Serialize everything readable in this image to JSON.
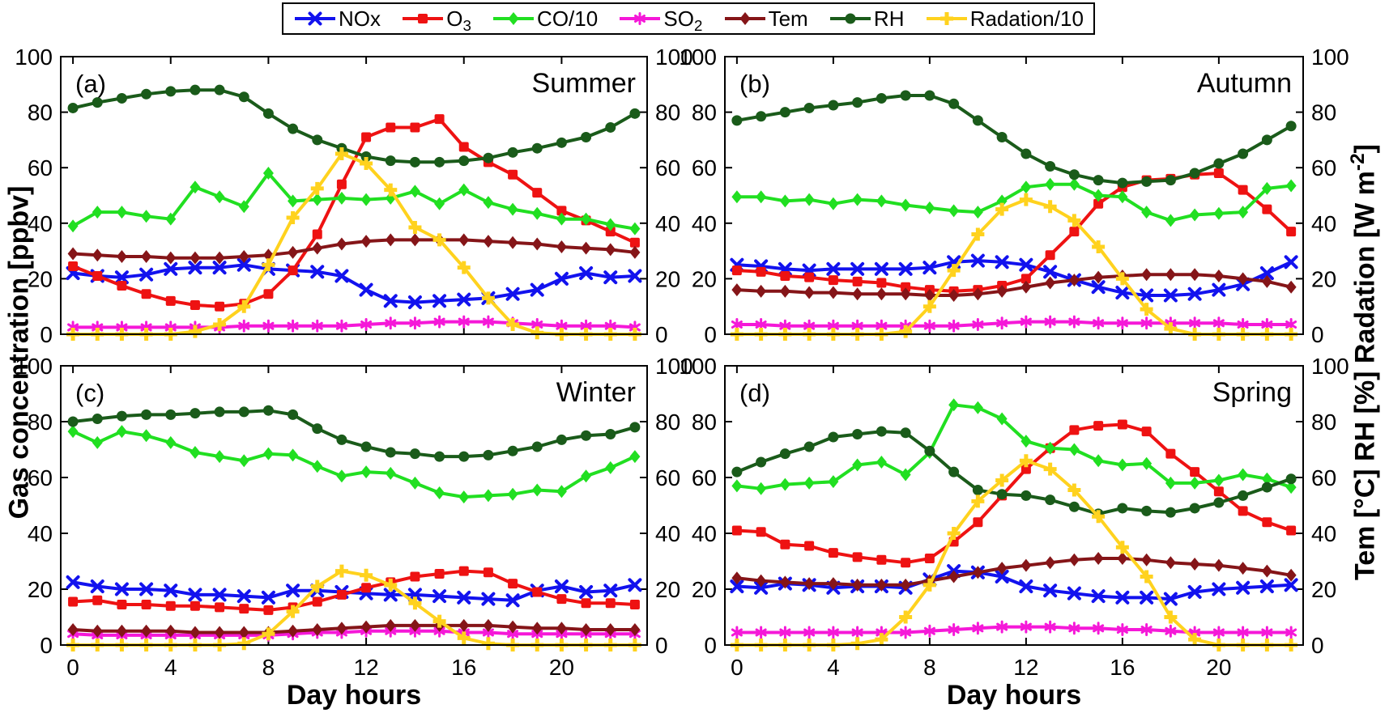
{
  "page": {
    "background": "#ffffff"
  },
  "legend": {
    "position": "top",
    "items": [
      {
        "id": "nox",
        "base": "NOx",
        "sub": ""
      },
      {
        "id": "o3",
        "base": "O",
        "sub": "3"
      },
      {
        "id": "co",
        "base": "CO/10",
        "sub": ""
      },
      {
        "id": "so2",
        "base": "SO",
        "sub": "2"
      },
      {
        "id": "tem",
        "base": "Tem",
        "sub": ""
      },
      {
        "id": "rh",
        "base": "RH",
        "sub": ""
      },
      {
        "id": "rad",
        "base": "Radation/10",
        "sub": ""
      }
    ]
  },
  "axes": {
    "x_label": "Day hours",
    "y_left_label": "Gas concentration [ppbv]",
    "y_right_pre": "Tem [°C] RH [%] Radation [W m",
    "y_right_sup": "-2",
    "y_right_post": "]",
    "x_ticks": [
      0,
      4,
      8,
      12,
      16,
      20
    ],
    "y_ticks": [
      0,
      20,
      40,
      60,
      80,
      100
    ],
    "x_range": [
      -0.5,
      23.5
    ],
    "y_range": [
      0,
      100
    ],
    "grid": false
  },
  "series_meta": [
    {
      "id": "nox",
      "name": "NOx",
      "color": "#1212ee",
      "marker": "x"
    },
    {
      "id": "o3",
      "name": "O3",
      "color": "#ee1212",
      "marker": "square"
    },
    {
      "id": "co",
      "name": "CO/10",
      "color": "#21df21",
      "marker": "diamond"
    },
    {
      "id": "so2",
      "name": "SO2",
      "color": "#f518d8",
      "marker": "star"
    },
    {
      "id": "tem",
      "name": "Tem",
      "color": "#851518",
      "marker": "diamond"
    },
    {
      "id": "rh",
      "name": "RH",
      "color": "#1a5b1a",
      "marker": "circle"
    },
    {
      "id": "rad",
      "name": "Radation/10",
      "color": "#ffd21e",
      "marker": "plus"
    }
  ],
  "chart_data": [
    {
      "type": "line",
      "panel": "a",
      "letter": "(a)",
      "title": "Summer",
      "x": [
        0,
        1,
        2,
        3,
        4,
        5,
        6,
        7,
        8,
        9,
        10,
        11,
        12,
        13,
        14,
        15,
        16,
        17,
        18,
        19,
        20,
        21,
        22,
        23
      ],
      "series": [
        {
          "name": "NOx",
          "values": [
            22,
            21,
            20.5,
            21.5,
            23.5,
            24,
            24,
            25,
            23.5,
            23,
            22.5,
            21,
            16,
            12,
            11.5,
            12,
            12.5,
            13,
            14.5,
            16,
            20,
            22,
            20.5,
            21
          ]
        },
        {
          "name": "O3",
          "values": [
            24.5,
            21,
            17.5,
            14.5,
            12,
            10.5,
            10,
            11,
            14.5,
            23,
            36,
            54,
            71,
            74.5,
            74.5,
            77.5,
            67.5,
            62,
            57.5,
            51,
            44.5,
            41,
            37,
            33
          ]
        },
        {
          "name": "CO/10",
          "values": [
            39,
            44,
            44,
            42.5,
            41.5,
            53,
            49.5,
            46,
            58,
            48,
            48.5,
            49,
            48.5,
            49,
            51.5,
            47,
            52,
            47.5,
            45,
            43.5,
            41.5,
            41.5,
            39.5,
            38
          ]
        },
        {
          "name": "SO2",
          "values": [
            2.5,
            2.5,
            2.5,
            2.5,
            2.5,
            2.5,
            2.5,
            3,
            3,
            3,
            3,
            3,
            3.5,
            4,
            4,
            4.5,
            4.5,
            4.5,
            4,
            3.5,
            3,
            3,
            3,
            2.5
          ]
        },
        {
          "name": "Tem",
          "values": [
            29,
            28.5,
            28,
            28,
            27.5,
            27.5,
            27.5,
            28,
            28.5,
            29.5,
            31,
            32.5,
            33.5,
            34,
            34,
            34,
            34,
            33.5,
            33,
            32.5,
            31.5,
            31,
            30.5,
            29.5
          ]
        },
        {
          "name": "RH",
          "values": [
            81.5,
            83.5,
            85,
            86.5,
            87.5,
            88,
            88,
            85.5,
            79.5,
            74,
            70,
            67,
            64,
            62.5,
            62,
            62,
            62.5,
            63.5,
            65.5,
            67,
            69,
            71,
            74.5,
            79.5
          ]
        },
        {
          "name": "Radation/10",
          "values": [
            0,
            0,
            0,
            0,
            0,
            1,
            3.5,
            10,
            25,
            42,
            52.5,
            65,
            61.5,
            52,
            38.5,
            34,
            24,
            13,
            3.5,
            0.5,
            0,
            0,
            0,
            0
          ]
        }
      ]
    },
    {
      "type": "line",
      "panel": "b",
      "letter": "(b)",
      "title": "Autumn",
      "x": [
        0,
        1,
        2,
        3,
        4,
        5,
        6,
        7,
        8,
        9,
        10,
        11,
        12,
        13,
        14,
        15,
        16,
        17,
        18,
        19,
        20,
        21,
        22,
        23
      ],
      "series": [
        {
          "name": "NOx",
          "values": [
            25,
            24.5,
            23.5,
            23,
            23.5,
            23.5,
            23.5,
            23.5,
            24,
            26,
            26.5,
            26,
            25,
            22.5,
            19.5,
            17,
            15,
            14,
            14,
            14.5,
            16,
            18,
            22,
            26
          ]
        },
        {
          "name": "O3",
          "values": [
            23,
            22.5,
            21,
            20.5,
            19.5,
            19,
            18.5,
            17,
            16,
            15.5,
            16,
            17.5,
            20,
            28.5,
            37,
            47,
            53,
            55.5,
            56,
            57.5,
            58,
            52,
            45,
            37
          ]
        },
        {
          "name": "CO/10",
          "values": [
            49.5,
            49.5,
            48,
            48.5,
            47,
            48.5,
            48,
            46.5,
            45.5,
            44.5,
            44,
            48,
            53,
            54,
            54,
            50,
            49.5,
            44,
            41,
            43,
            43.5,
            44,
            52.5,
            53.5
          ]
        },
        {
          "name": "SO2",
          "values": [
            3.5,
            3.5,
            3,
            3,
            3,
            3,
            3,
            3,
            3,
            3,
            3.5,
            4,
            4.5,
            4.5,
            4.5,
            4,
            4,
            4,
            4,
            4,
            4,
            3.5,
            3.5,
            3.5
          ]
        },
        {
          "name": "Tem",
          "values": [
            16,
            15.5,
            15.5,
            15,
            15,
            14.5,
            14.5,
            14.5,
            14,
            14,
            14.5,
            15.5,
            17,
            18.5,
            19.5,
            20.5,
            21,
            21.5,
            21.5,
            21.5,
            21,
            20,
            19,
            17
          ]
        },
        {
          "name": "RH",
          "values": [
            77,
            78.5,
            80,
            81.5,
            82.5,
            83.5,
            85,
            86,
            86,
            83,
            77,
            71,
            65,
            60.5,
            57.5,
            55.5,
            54.5,
            55,
            55.5,
            58,
            61.5,
            65,
            70,
            75
          ]
        },
        {
          "name": "Radation/10",
          "values": [
            0,
            0,
            0,
            0,
            0,
            0,
            0,
            1,
            10,
            23,
            36,
            45,
            48.5,
            46,
            41,
            31.5,
            20,
            9,
            2,
            0,
            0,
            0,
            0,
            0
          ]
        }
      ]
    },
    {
      "type": "line",
      "panel": "c",
      "letter": "(c)",
      "title": "Winter",
      "x": [
        0,
        1,
        2,
        3,
        4,
        5,
        6,
        7,
        8,
        9,
        10,
        11,
        12,
        13,
        14,
        15,
        16,
        17,
        18,
        19,
        20,
        21,
        22,
        23
      ],
      "series": [
        {
          "name": "NOx",
          "values": [
            22.5,
            21,
            20,
            20,
            19.5,
            18,
            18,
            17.5,
            17,
            19.5,
            19.5,
            19,
            18.5,
            18,
            18,
            17.5,
            17,
            16.5,
            16,
            19.5,
            21,
            19,
            19.5,
            21.5
          ]
        },
        {
          "name": "O3",
          "values": [
            15.5,
            16,
            14.5,
            14.5,
            14,
            14,
            13.5,
            13,
            12.5,
            13.5,
            15.5,
            18,
            20.5,
            22.5,
            24.5,
            25.5,
            26.5,
            26,
            22,
            19,
            16.5,
            15,
            15,
            14.5
          ]
        },
        {
          "name": "CO/10",
          "values": [
            76.5,
            72.5,
            76.5,
            75,
            72.5,
            69,
            67.5,
            66,
            68.5,
            68,
            64,
            60.5,
            62,
            61.5,
            58,
            54.5,
            53,
            53.5,
            54,
            55.5,
            55,
            60.5,
            63.5,
            67.5
          ]
        },
        {
          "name": "SO2",
          "values": [
            4,
            3.5,
            3.5,
            3.5,
            3.5,
            3.5,
            3.5,
            3.5,
            3.5,
            4,
            4.5,
            4.5,
            5,
            5,
            5,
            5,
            4.5,
            4.5,
            4,
            4,
            4,
            4,
            4,
            4
          ]
        },
        {
          "name": "Tem",
          "values": [
            5.5,
            5,
            5,
            5,
            5,
            4.5,
            4.5,
            4.5,
            4.5,
            5,
            5.5,
            6,
            6.5,
            7,
            7,
            7,
            7,
            7,
            6.5,
            6,
            6,
            5.5,
            5.5,
            5.5
          ]
        },
        {
          "name": "RH",
          "values": [
            80,
            81,
            82,
            82.5,
            82.5,
            83,
            83.5,
            83.5,
            84,
            82.5,
            77.5,
            73.5,
            71,
            69,
            68.5,
            67.5,
            67.5,
            68,
            69.5,
            71,
            73.5,
            75,
            75.5,
            78
          ]
        },
        {
          "name": "Radation/10",
          "values": [
            0,
            0,
            0,
            0,
            0,
            0,
            0,
            0.5,
            4,
            12,
            21,
            26.5,
            25,
            21.5,
            15,
            8.5,
            2.5,
            0.5,
            0,
            0,
            0,
            0,
            0,
            0
          ]
        }
      ]
    },
    {
      "type": "line",
      "panel": "d",
      "letter": "(d)",
      "title": "Spring",
      "x": [
        0,
        1,
        2,
        3,
        4,
        5,
        6,
        7,
        8,
        9,
        10,
        11,
        12,
        13,
        14,
        15,
        16,
        17,
        18,
        19,
        20,
        21,
        22,
        23
      ],
      "series": [
        {
          "name": "NOx",
          "values": [
            21,
            20.5,
            22,
            21.5,
            20.5,
            21,
            21,
            20.5,
            23.5,
            26.5,
            26,
            24.5,
            21,
            19.5,
            18.5,
            17.5,
            17,
            17,
            16.5,
            19,
            20,
            20.5,
            21,
            21.5
          ]
        },
        {
          "name": "O3",
          "values": [
            41,
            40.5,
            36,
            35.5,
            33,
            31.5,
            30.5,
            29.5,
            31,
            37,
            44,
            53.5,
            63,
            70.5,
            77,
            78.5,
            79,
            76.5,
            68.5,
            62,
            55,
            48,
            44,
            41
          ]
        },
        {
          "name": "CO/10",
          "values": [
            57,
            56,
            57.5,
            58,
            58.5,
            64.5,
            65.5,
            61,
            69,
            86,
            85,
            81,
            73,
            70.5,
            70,
            66,
            64.5,
            65,
            58,
            58,
            59,
            61,
            59.5,
            56.5
          ]
        },
        {
          "name": "SO2",
          "values": [
            4.5,
            4.5,
            4.5,
            4.5,
            4.5,
            4.5,
            4.5,
            4.5,
            5,
            5.5,
            6,
            6.5,
            6.5,
            6.5,
            6,
            6,
            5.5,
            5.5,
            5,
            4.5,
            4.5,
            4.5,
            4.5,
            4.5
          ]
        },
        {
          "name": "Tem",
          "values": [
            24,
            23,
            22.5,
            22,
            22,
            21.5,
            21.5,
            21.5,
            23,
            24.5,
            26,
            27.5,
            28.5,
            29.5,
            30.5,
            31,
            31,
            30.5,
            29.5,
            29,
            28.5,
            27.5,
            26.5,
            25
          ]
        },
        {
          "name": "RH",
          "values": [
            62,
            65.5,
            68.5,
            71,
            74.5,
            75.5,
            76.5,
            76,
            69.5,
            62,
            55.5,
            54,
            53.5,
            52,
            49.5,
            47,
            49,
            48,
            47.5,
            49,
            51,
            53.5,
            56.5,
            59.5
          ]
        },
        {
          "name": "Radation/10",
          "values": [
            0,
            0,
            0,
            0,
            0,
            0.5,
            2,
            10,
            21.5,
            40,
            51.5,
            59,
            66,
            63,
            55.5,
            46,
            35,
            24.5,
            10,
            2,
            0,
            0,
            0,
            0
          ]
        }
      ]
    }
  ]
}
